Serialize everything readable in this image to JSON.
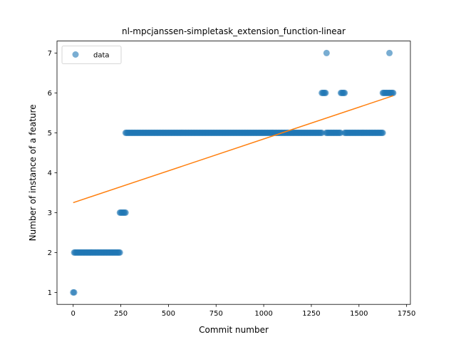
{
  "chart_data": {
    "type": "scatter",
    "title": "nl-mpcjanssen-simpletask_extension_function-linear",
    "xlabel": "Commit number",
    "ylabel": "Number of instance of a feature",
    "xlim": [
      -85,
      1770
    ],
    "ylim": [
      0.7,
      7.3
    ],
    "xticks": [
      0,
      250,
      500,
      750,
      1000,
      1250,
      1500,
      1750
    ],
    "yticks": [
      1,
      2,
      3,
      4,
      5,
      6,
      7
    ],
    "legend": {
      "location": "top-left",
      "entries": [
        "data"
      ]
    },
    "colors": {
      "data": "#1f77b4",
      "fit": "#ff7f0e"
    },
    "series": [
      {
        "name": "data",
        "kind": "scatter",
        "segments": [
          {
            "x_start": 0,
            "x_end": 5,
            "y": 1
          },
          {
            "x_start": 5,
            "x_end": 245,
            "y": 2
          },
          {
            "x_start": 245,
            "x_end": 275,
            "y": 3
          },
          {
            "x_start": 275,
            "x_end": 1305,
            "y": 5
          },
          {
            "x_start": 1305,
            "x_end": 1328,
            "y": 6
          },
          {
            "x_start": 1328,
            "x_end": 1405,
            "y": 5
          },
          {
            "x_start": 1405,
            "x_end": 1425,
            "y": 6
          },
          {
            "x_start": 1425,
            "x_end": 1625,
            "y": 5
          },
          {
            "x_start": 1625,
            "x_end": 1680,
            "y": 6
          }
        ],
        "points": [
          {
            "x": 1330,
            "y": 7
          },
          {
            "x": 1660,
            "y": 7
          }
        ]
      },
      {
        "name": "linear fit",
        "kind": "line",
        "x": [
          0,
          1680
        ],
        "y": [
          3.25,
          5.93
        ]
      }
    ]
  }
}
